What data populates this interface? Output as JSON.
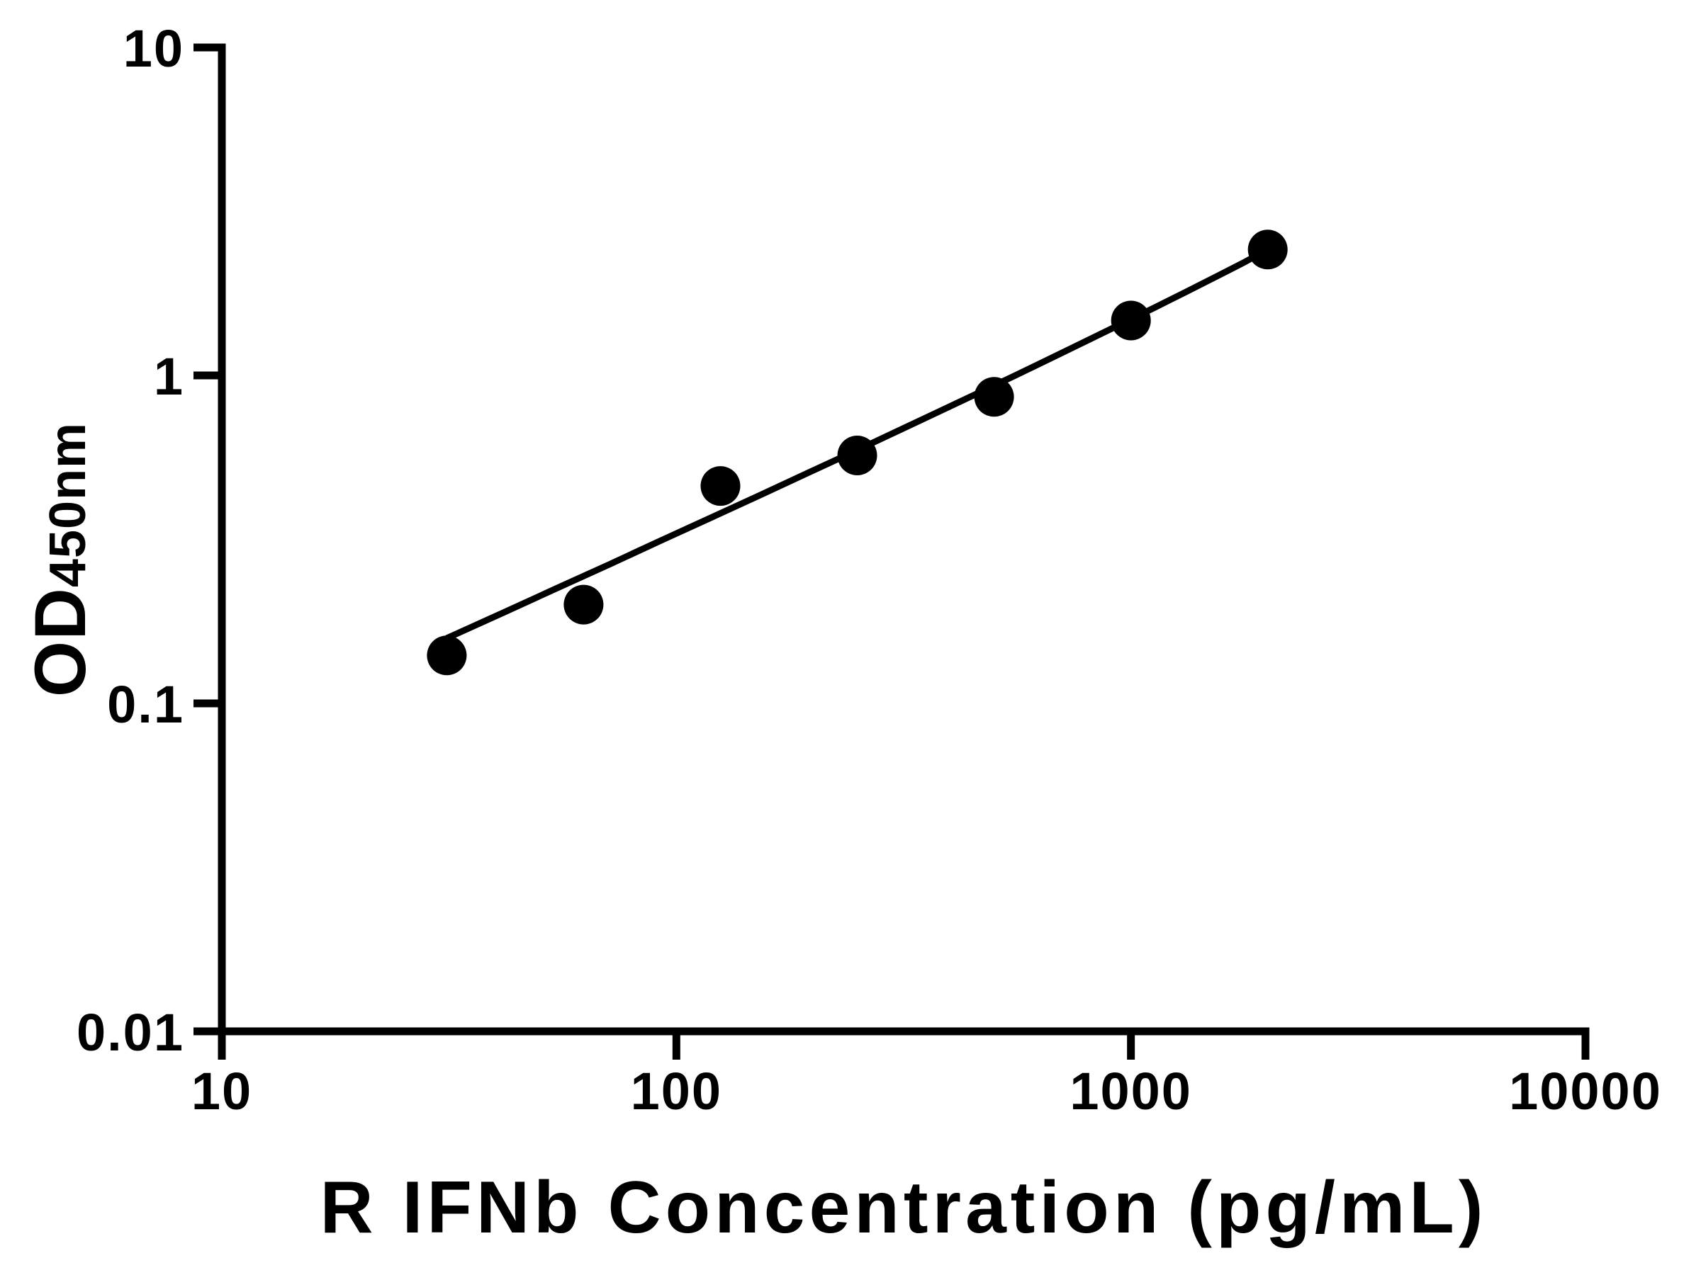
{
  "figure": {
    "background": "#ffffff",
    "ink": "#000000"
  },
  "chart_data": {
    "type": "scatter",
    "title": "",
    "xlabel": "R IFNb Concentration (pg/mL)",
    "ylabel_main": "OD",
    "ylabel_sub": "450nm",
    "x_scale": "log10",
    "y_scale": "log10",
    "xlim": [
      10,
      10000
    ],
    "ylim": [
      0.01,
      10
    ],
    "grid": false,
    "legend": null,
    "marker": "filled-circle",
    "marker_color": "#000000",
    "line_color": "#000000",
    "x_ticks": [
      {
        "v": 10,
        "label": "10"
      },
      {
        "v": 100,
        "label": "100"
      },
      {
        "v": 1000,
        "label": "1000"
      },
      {
        "v": 10000,
        "label": "10000"
      }
    ],
    "y_ticks": [
      {
        "v": 0.01,
        "label": "0.01"
      },
      {
        "v": 0.1,
        "label": "0.1"
      },
      {
        "v": 1,
        "label": "1"
      },
      {
        "v": 10,
        "label": "10"
      }
    ],
    "series": [
      {
        "name": "standard-points",
        "type": "scatter",
        "points": [
          [
            31.25,
            0.14
          ],
          [
            62.5,
            0.2
          ],
          [
            125,
            0.46
          ],
          [
            250,
            0.57
          ],
          [
            500,
            0.86
          ],
          [
            1000,
            1.47
          ],
          [
            2000,
            2.42
          ]
        ]
      },
      {
        "name": "fit-curve",
        "type": "line",
        "points": [
          [
            31.25,
            0.158
          ],
          [
            41.6,
            0.189
          ],
          [
            54.8,
            0.225
          ],
          [
            71.5,
            0.266
          ],
          [
            92.6,
            0.314
          ],
          [
            119,
            0.368
          ],
          [
            152,
            0.43
          ],
          [
            192,
            0.5
          ],
          [
            241,
            0.578
          ],
          [
            300,
            0.667
          ],
          [
            371,
            0.766
          ],
          [
            456,
            0.877
          ],
          [
            555,
            0.998
          ],
          [
            670,
            1.132
          ],
          [
            803,
            1.28
          ],
          [
            954,
            1.437
          ],
          [
            1126,
            1.609
          ],
          [
            1318,
            1.794
          ],
          [
            1531,
            1.992
          ],
          [
            1764,
            2.202
          ],
          [
            2000,
            2.423
          ]
        ]
      }
    ]
  }
}
